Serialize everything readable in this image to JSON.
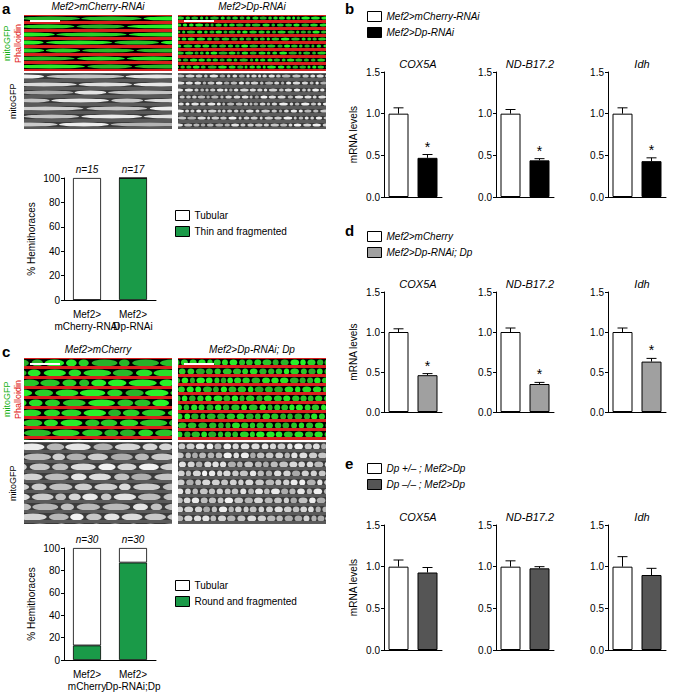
{
  "panel_labels": [
    "a",
    "b",
    "c",
    "d",
    "e"
  ],
  "images": [
    {
      "columns": [
        "Mef2>mCherry-RNAi",
        "Mef2>Dp-RNAi"
      ],
      "merge_labels": [
        "mitoGFP",
        "Phalloidin"
      ],
      "channel_label": "mitoGFP"
    },
    {
      "columns": [
        "Mef2>mCherry",
        "Mef2>Dp-RNAi; Dp"
      ],
      "merge_labels": [
        "mitoGFP",
        "Phalloidin"
      ],
      "channel_label": "mitoGFP"
    }
  ],
  "chart_data": [
    {
      "type": "bar",
      "stacked": true,
      "y_label": "% Hemithoraces",
      "categories": [
        "Mef2>\nmCherry-RNAi",
        "Mef2>\nDp-RNAi"
      ],
      "n_labels": [
        "n=15",
        "n=17"
      ],
      "series": [
        {
          "name": "Tubular",
          "color": "#ffffff",
          "values": [
            100,
            0
          ]
        },
        {
          "name": "Thin and fragmented",
          "color": "#1a9a48",
          "values": [
            0,
            100
          ]
        }
      ],
      "ylim": [
        0,
        100
      ],
      "yticks": [
        0,
        20,
        40,
        60,
        80,
        100
      ],
      "grid": false
    },
    {
      "type": "bar",
      "title": "COX5A",
      "y_label": "mRNA levels",
      "series": [
        {
          "name": "Mef2>mCherry-RNAi",
          "color": "#ffffff",
          "values": [
            1.0
          ],
          "errors": [
            0.07
          ]
        },
        {
          "name": "Mef2>Dp-RNAi",
          "color": "#000000",
          "values": [
            0.47
          ],
          "errors": [
            0.04
          ],
          "annotations": [
            "*"
          ]
        }
      ],
      "ylim": [
        0,
        1.5
      ],
      "yticks": [
        {
          "value": 0,
          "label": "0.0"
        },
        0.5,
        {
          "value": 1,
          "label": "1.0"
        },
        1.5
      ],
      "grid": false
    },
    {
      "type": "bar",
      "title": "ND-B17.2",
      "series": [
        {
          "name": "Mef2>mCherry-RNAi",
          "color": "#ffffff",
          "values": [
            1.0
          ],
          "errors": [
            0.05
          ]
        },
        {
          "name": "Mef2>Dp-RNAi",
          "color": "#000000",
          "values": [
            0.44
          ],
          "errors": [
            0.02
          ],
          "annotations": [
            "*"
          ]
        }
      ],
      "ylim": [
        0,
        1.5
      ],
      "yticks": [
        {
          "value": 0,
          "label": "0.0"
        },
        0.5,
        {
          "value": 1,
          "label": "1.0"
        },
        1.5
      ],
      "grid": false
    },
    {
      "type": "bar",
      "title": "Idh",
      "series": [
        {
          "name": "Mef2>mCherry-RNAi",
          "color": "#ffffff",
          "values": [
            1.0
          ],
          "errors": [
            0.07
          ]
        },
        {
          "name": "Mef2>Dp-RNAi",
          "color": "#000000",
          "values": [
            0.43
          ],
          "errors": [
            0.04
          ],
          "annotations": [
            "*"
          ]
        }
      ],
      "ylim": [
        0,
        1.5
      ],
      "yticks": [
        {
          "value": 0,
          "label": "0.0"
        },
        0.5,
        {
          "value": 1,
          "label": "1.0"
        },
        1.5
      ],
      "grid": false
    },
    {
      "type": "bar",
      "stacked": true,
      "y_label": "% Hemithoraces",
      "categories": [
        "Mef2>\nmCherry",
        "Mef2>\nDp-RNAi;Dp"
      ],
      "n_labels": [
        "n=30",
        "n=30"
      ],
      "series": [
        {
          "name": "Tubular",
          "color": "#ffffff",
          "values": [
            87,
            13
          ]
        },
        {
          "name": "Round and fragmented",
          "color": "#1a9a48",
          "values": [
            13,
            87
          ]
        }
      ],
      "ylim": [
        0,
        100
      ],
      "yticks": [
        0,
        20,
        40,
        60,
        80,
        100
      ],
      "grid": false
    },
    {
      "type": "bar",
      "title": "COX5A",
      "y_label": "mRNA levels",
      "series": [
        {
          "name": "Mef2>mCherry",
          "color": "#ffffff",
          "values": [
            1.0
          ],
          "errors": [
            0.04
          ]
        },
        {
          "name": "Mef2>Dp-RNAi; Dp",
          "color": "#a0a0a0",
          "values": [
            0.46
          ],
          "errors": [
            0.02
          ],
          "annotations": [
            "*"
          ]
        }
      ],
      "ylim": [
        0,
        1.5
      ],
      "yticks": [
        {
          "value": 0,
          "label": "0.0"
        },
        0.5,
        {
          "value": 1,
          "label": "1.0"
        },
        1.5
      ],
      "grid": false
    },
    {
      "type": "bar",
      "title": "ND-B17.2",
      "series": [
        {
          "name": "Mef2>mCherry",
          "color": "#ffffff",
          "values": [
            1.0
          ],
          "errors": [
            0.05
          ]
        },
        {
          "name": "Mef2>Dp-RNAi; Dp",
          "color": "#a0a0a0",
          "values": [
            0.35
          ],
          "errors": [
            0.02
          ],
          "annotations": [
            "*"
          ]
        }
      ],
      "ylim": [
        0,
        1.5
      ],
      "yticks": [
        {
          "value": 0,
          "label": "0.0"
        },
        0.5,
        {
          "value": 1,
          "label": "1.0"
        },
        1.5
      ],
      "grid": false
    },
    {
      "type": "bar",
      "title": "Idh",
      "series": [
        {
          "name": "Mef2>mCherry",
          "color": "#ffffff",
          "values": [
            1.0
          ],
          "errors": [
            0.05
          ]
        },
        {
          "name": "Mef2>Dp-RNAi; Dp",
          "color": "#a0a0a0",
          "values": [
            0.63
          ],
          "errors": [
            0.04
          ],
          "annotations": [
            "*"
          ]
        }
      ],
      "ylim": [
        0,
        1.5
      ],
      "yticks": [
        {
          "value": 0,
          "label": "0.0"
        },
        0.5,
        {
          "value": 1,
          "label": "1.0"
        },
        1.5
      ],
      "grid": false
    },
    {
      "type": "bar",
      "title": "COX5A",
      "y_label": "mRNA levels",
      "series": [
        {
          "name": "Dp +/– ; Mef2>Dp",
          "color": "#ffffff",
          "values": [
            1.0
          ],
          "errors": [
            0.08
          ]
        },
        {
          "name": "Dp –/– ; Mef2>Dp",
          "color": "#555555",
          "values": [
            0.93
          ],
          "errors": [
            0.06
          ]
        }
      ],
      "ylim": [
        0,
        1.5
      ],
      "yticks": [
        {
          "value": 0,
          "label": "0.0"
        },
        0.5,
        {
          "value": 1,
          "label": "1.0"
        },
        1.5
      ],
      "grid": false
    },
    {
      "type": "bar",
      "title": "ND-B17.2",
      "series": [
        {
          "name": "Dp +/– ; Mef2>Dp",
          "color": "#ffffff",
          "values": [
            1.0
          ],
          "errors": [
            0.07
          ]
        },
        {
          "name": "Dp –/– ; Mef2>Dp",
          "color": "#555555",
          "values": [
            0.98
          ],
          "errors": [
            0.02
          ]
        }
      ],
      "ylim": [
        0,
        1.5
      ],
      "yticks": [
        {
          "value": 0,
          "label": "0.0"
        },
        0.5,
        {
          "value": 1,
          "label": "1.0"
        },
        1.5
      ],
      "grid": false
    },
    {
      "type": "bar",
      "title": "Idh",
      "series": [
        {
          "name": "Dp +/– ; Mef2>Dp",
          "color": "#ffffff",
          "values": [
            1.0
          ],
          "errors": [
            0.12
          ]
        },
        {
          "name": "Dp –/– ; Mef2>Dp",
          "color": "#555555",
          "values": [
            0.9
          ],
          "errors": [
            0.08
          ]
        }
      ],
      "ylim": [
        0,
        1.5
      ],
      "yticks": [
        {
          "value": 0,
          "label": "0.0"
        },
        0.5,
        {
          "value": 1,
          "label": "1.0"
        },
        1.5
      ],
      "grid": false
    }
  ]
}
